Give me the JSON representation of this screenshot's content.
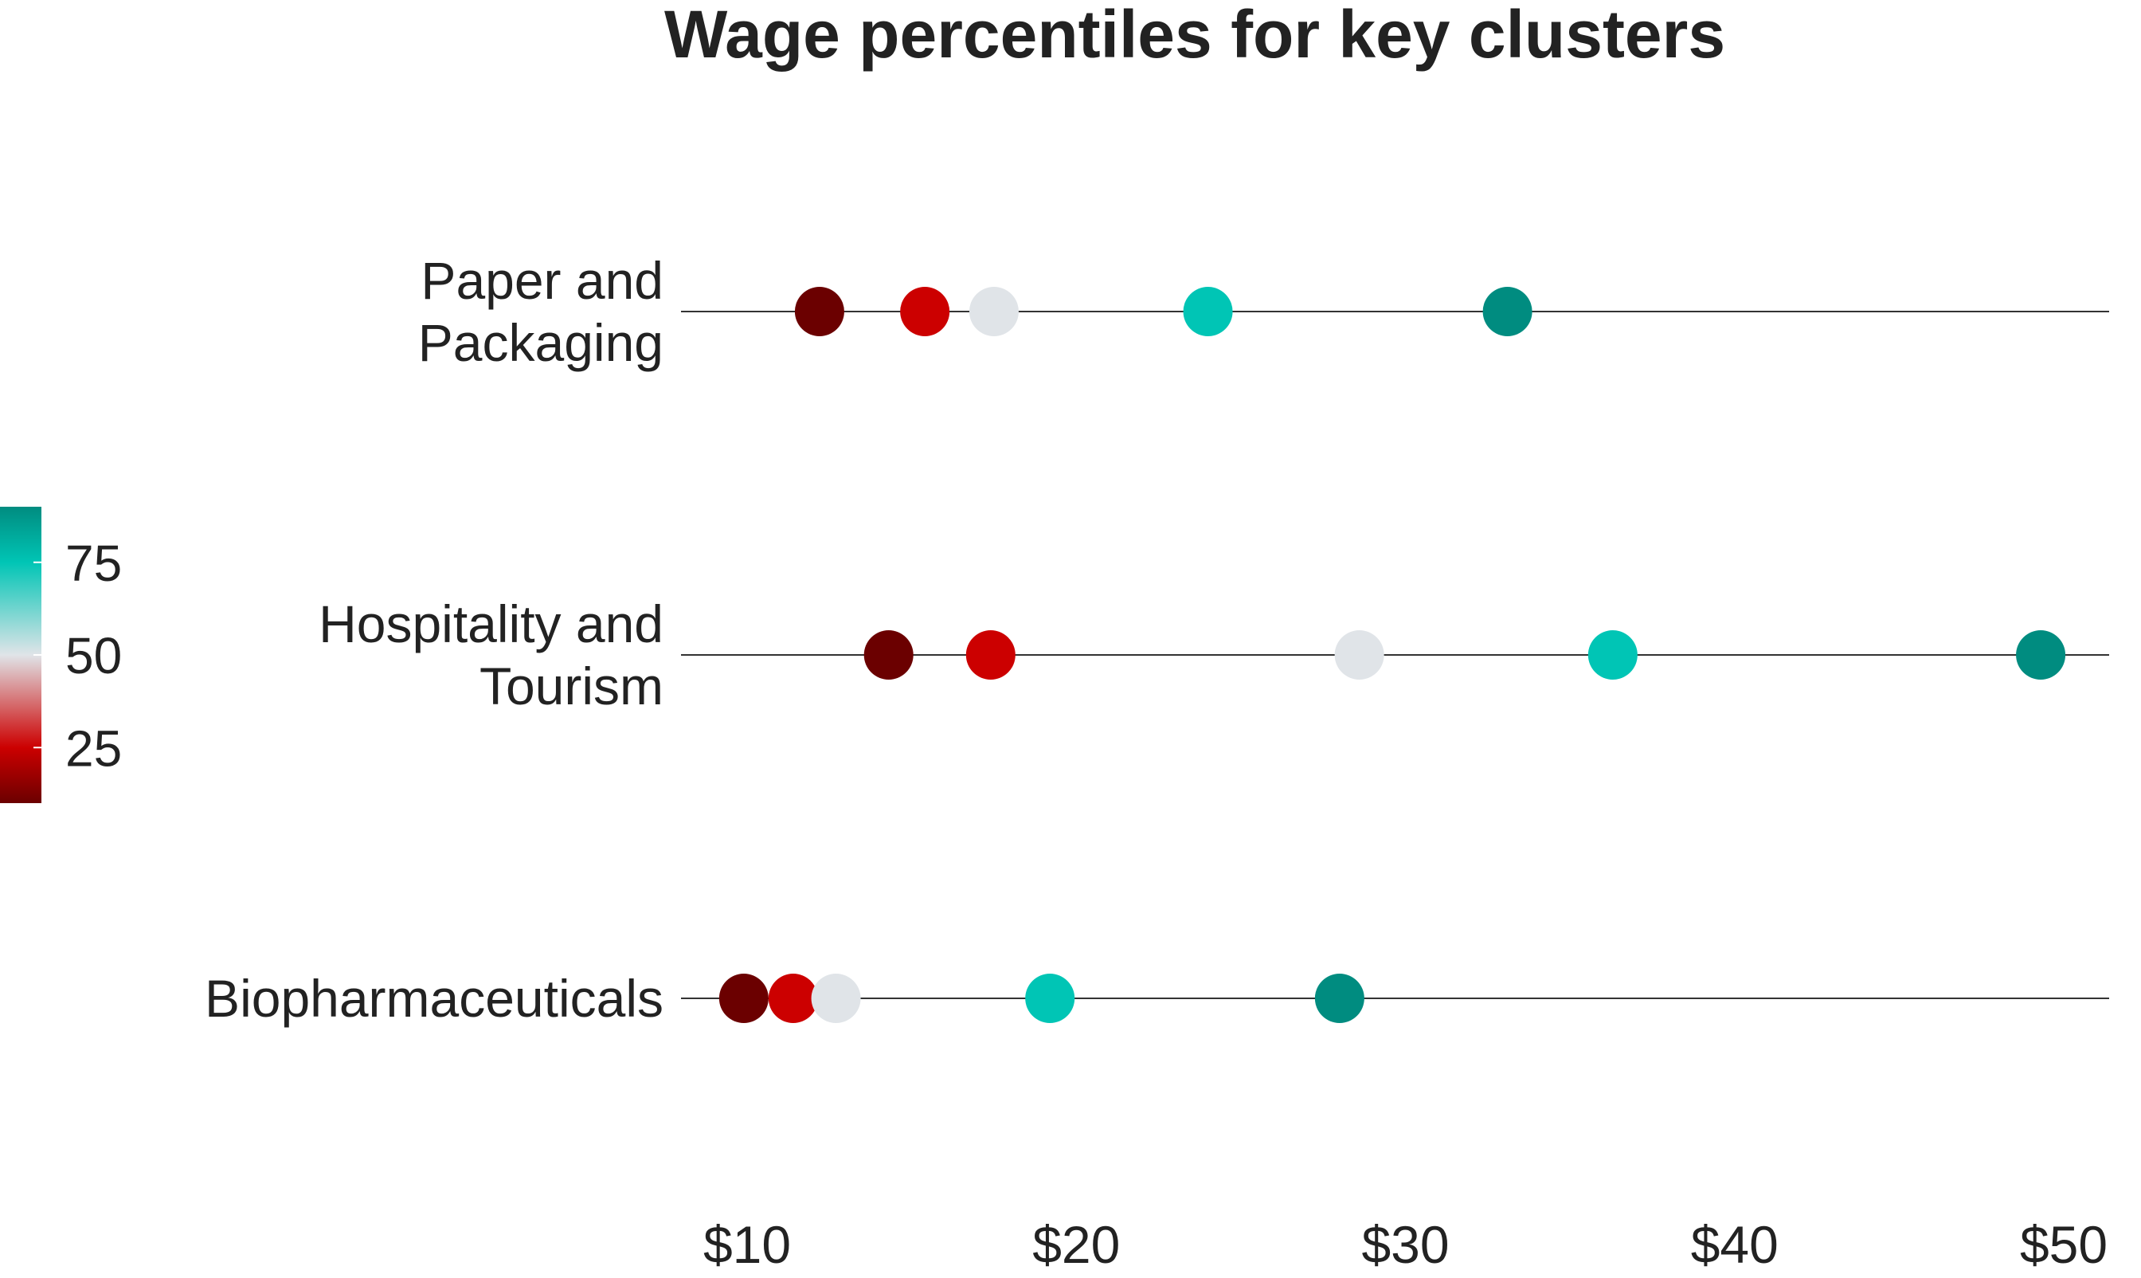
{
  "chart_data": {
    "type": "scatter",
    "title": "Wage percentiles for key clusters",
    "xlabel": "",
    "ylabel": "",
    "xlim": [
      8,
      50
    ],
    "x_ticks": [
      10,
      20,
      30,
      40,
      50
    ],
    "x_tick_labels": [
      "$10",
      "$20",
      "$30",
      "$40",
      "$50"
    ],
    "grid": false,
    "categories": [
      {
        "label_lines": [
          "Paper and",
          "Packaging"
        ]
      },
      {
        "label_lines": [
          "Hospitality and",
          "Tourism"
        ]
      },
      {
        "label_lines": [
          "Biopharmaceuticals"
        ]
      }
    ],
    "percentiles": [
      10,
      25,
      50,
      75,
      90
    ],
    "series": [
      {
        "percentile": 10,
        "color": "#6b0000",
        "values": [
          12.2,
          14.3,
          9.9
        ]
      },
      {
        "percentile": 25,
        "color": "#cc0000",
        "values": [
          15.4,
          17.4,
          11.4
        ]
      },
      {
        "percentile": 50,
        "color": "#e0e4e8",
        "values": [
          17.5,
          28.6,
          12.7
        ]
      },
      {
        "percentile": 75,
        "color": "#00c5b5",
        "values": [
          24.0,
          36.3,
          19.2
        ]
      },
      {
        "percentile": 90,
        "color": "#008c80",
        "values": [
          33.1,
          49.3,
          28.0
        ]
      }
    ],
    "legend": {
      "type": "colorbar",
      "placement": "left",
      "range": [
        10,
        90
      ],
      "ticks": [
        25,
        50,
        75
      ],
      "tick_labels": [
        "25",
        "50",
        "75"
      ],
      "stops": [
        {
          "value": 10,
          "color": "#6b0000"
        },
        {
          "value": 25,
          "color": "#cc0000"
        },
        {
          "value": 50,
          "color": "#e0e4e8"
        },
        {
          "value": 75,
          "color": "#00c5b5"
        },
        {
          "value": 90,
          "color": "#008c80"
        }
      ]
    }
  }
}
